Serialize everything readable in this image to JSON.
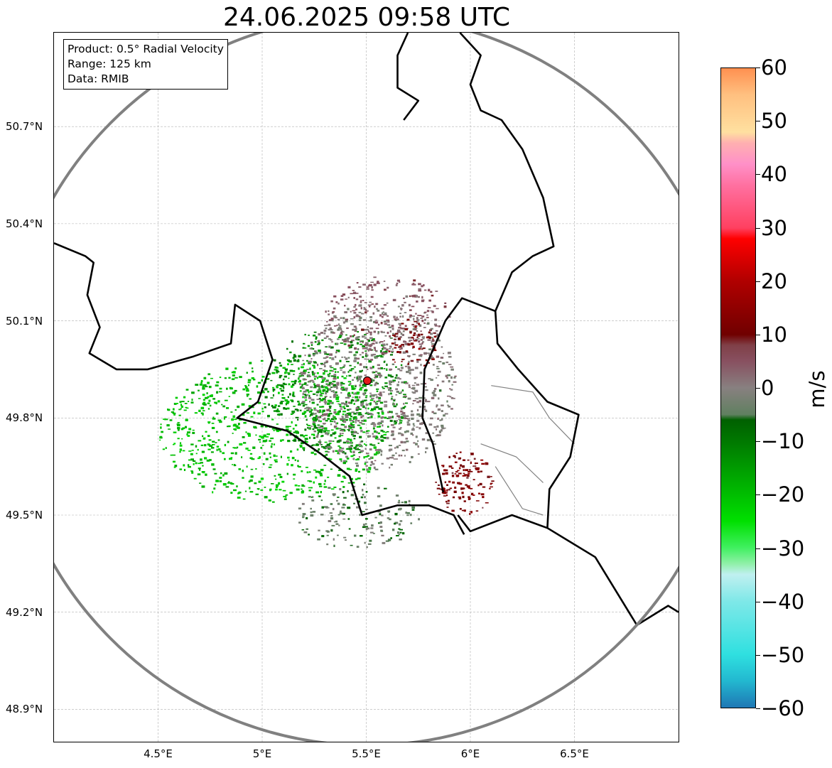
{
  "title": "24.06.2025 09:58 UTC",
  "info_box": {
    "product": "Product: 0.5° Radial Velocity",
    "range": "Range: 125 km",
    "source": "Data: RMIB"
  },
  "axes": {
    "lon_range": [
      4.0,
      7.0
    ],
    "lat_range": [
      48.8,
      50.99
    ],
    "x_ticks": [
      {
        "value": 4.5,
        "label": "4.5°E"
      },
      {
        "value": 5.0,
        "label": "5°E"
      },
      {
        "value": 5.5,
        "label": "5.5°E"
      },
      {
        "value": 6.0,
        "label": "6°E"
      },
      {
        "value": 6.5,
        "label": "6.5°E"
      }
    ],
    "y_ticks": [
      {
        "value": 50.7,
        "label": "50.7°N"
      },
      {
        "value": 50.4,
        "label": "50.4°N"
      },
      {
        "value": 50.1,
        "label": "50.1°N"
      },
      {
        "value": 49.8,
        "label": "49.8°N"
      },
      {
        "value": 49.5,
        "label": "49.5°N"
      },
      {
        "value": 49.2,
        "label": "49.2°N"
      },
      {
        "value": 48.9,
        "label": "48.9°N"
      }
    ],
    "grid": true
  },
  "radar": {
    "site": {
      "lon": 5.505,
      "lat": 49.915
    },
    "range_km": 125,
    "site_color": "#e31a1c",
    "ring_color": "#808080"
  },
  "colorbar": {
    "unit": "m/s",
    "min": -60,
    "max": 60,
    "ticks": [
      {
        "value": 60,
        "label": "60"
      },
      {
        "value": 50,
        "label": "50"
      },
      {
        "value": 40,
        "label": "40"
      },
      {
        "value": 30,
        "label": "30"
      },
      {
        "value": 20,
        "label": "20"
      },
      {
        "value": 10,
        "label": "10"
      },
      {
        "value": 0,
        "label": "0"
      },
      {
        "value": -10,
        "label": "−10"
      },
      {
        "value": -20,
        "label": "−20"
      },
      {
        "value": -30,
        "label": "−30"
      },
      {
        "value": -40,
        "label": "−40"
      },
      {
        "value": -50,
        "label": "−50"
      },
      {
        "value": -60,
        "label": "−60"
      }
    ],
    "stops": [
      {
        "value": -60,
        "color": "#1f77b4"
      },
      {
        "value": -55,
        "color": "#22b8d0"
      },
      {
        "value": -50,
        "color": "#2fe0e0"
      },
      {
        "value": -40,
        "color": "#7fe8e8"
      },
      {
        "value": -35,
        "color": "#c0f0f0"
      },
      {
        "value": -33,
        "color": "#90f0a8"
      },
      {
        "value": -30,
        "color": "#40f060"
      },
      {
        "value": -25,
        "color": "#00e000"
      },
      {
        "value": -18,
        "color": "#00b000"
      },
      {
        "value": -10,
        "color": "#007800"
      },
      {
        "value": -6,
        "color": "#006000"
      },
      {
        "value": -5,
        "color": "#608060"
      },
      {
        "value": 0,
        "color": "#888080"
      },
      {
        "value": 5,
        "color": "#885060"
      },
      {
        "value": 8,
        "color": "#804048"
      },
      {
        "value": 10,
        "color": "#700000"
      },
      {
        "value": 20,
        "color": "#b00000"
      },
      {
        "value": 28,
        "color": "#ff0000"
      },
      {
        "value": 30,
        "color": "#ff4060"
      },
      {
        "value": 38,
        "color": "#ff70a0"
      },
      {
        "value": 42,
        "color": "#ff90c8"
      },
      {
        "value": 46,
        "color": "#ffb0b0"
      },
      {
        "value": 48,
        "color": "#ffe0a0"
      },
      {
        "value": 55,
        "color": "#ffc080"
      },
      {
        "value": 60,
        "color": "#ff9050"
      }
    ]
  },
  "echo_regions": [
    {
      "name": "inbound-west",
      "lon": 5.05,
      "lat": 49.76,
      "r_lon": 0.55,
      "r_lat": 0.22,
      "velocity": -20,
      "density": 0.55
    },
    {
      "name": "inbound-core",
      "lon": 5.35,
      "lat": 49.88,
      "r_lon": 0.35,
      "r_lat": 0.2,
      "velocity": -12,
      "density": 0.6
    },
    {
      "name": "near-zero-center",
      "lon": 5.55,
      "lat": 49.9,
      "r_lon": 0.38,
      "r_lat": 0.26,
      "velocity": 0,
      "density": 0.7
    },
    {
      "name": "near-zero-north",
      "lon": 5.6,
      "lat": 50.12,
      "r_lon": 0.3,
      "r_lat": 0.12,
      "velocity": 4,
      "density": 0.55
    },
    {
      "name": "outbound-northeast",
      "lon": 5.72,
      "lat": 50.03,
      "r_lon": 0.12,
      "r_lat": 0.08,
      "velocity": 12,
      "density": 0.5
    },
    {
      "name": "outbound-southeast",
      "lon": 5.97,
      "lat": 49.6,
      "r_lon": 0.14,
      "r_lat": 0.1,
      "velocity": 12,
      "density": 0.8
    },
    {
      "name": "mixed-south",
      "lon": 5.45,
      "lat": 49.5,
      "r_lon": 0.3,
      "r_lat": 0.1,
      "velocity": -4,
      "density": 0.45
    }
  ],
  "border_lines": [
    {
      "name": "border-west",
      "points": [
        [
          4.0,
          50.34
        ],
        [
          4.15,
          50.3
        ],
        [
          4.19,
          50.28
        ],
        [
          4.16,
          50.18
        ],
        [
          4.22,
          50.08
        ],
        [
          4.17,
          50.0
        ],
        [
          4.3,
          49.95
        ],
        [
          4.45,
          49.95
        ],
        [
          4.67,
          49.99
        ],
        [
          4.85,
          50.03
        ],
        [
          4.87,
          50.15
        ],
        [
          4.99,
          50.1
        ],
        [
          5.05,
          49.98
        ],
        [
          4.98,
          49.85
        ],
        [
          4.88,
          49.8
        ],
        [
          5.0,
          49.78
        ],
        [
          5.12,
          49.76
        ],
        [
          5.28,
          49.69
        ],
        [
          5.42,
          49.62
        ],
        [
          5.48,
          49.5
        ],
        [
          5.65,
          49.53
        ],
        [
          5.8,
          49.53
        ],
        [
          5.92,
          49.5
        ],
        [
          5.97,
          49.44
        ]
      ]
    },
    {
      "name": "border-lux-east",
      "points": [
        [
          5.87,
          49.57
        ],
        [
          5.82,
          49.72
        ],
        [
          5.77,
          49.8
        ],
        [
          5.78,
          49.95
        ],
        [
          5.88,
          50.1
        ],
        [
          5.96,
          50.17
        ],
        [
          6.12,
          50.13
        ],
        [
          6.13,
          50.03
        ],
        [
          6.23,
          49.95
        ],
        [
          6.37,
          49.85
        ],
        [
          6.52,
          49.81
        ],
        [
          6.48,
          49.68
        ],
        [
          6.38,
          49.58
        ],
        [
          6.37,
          49.46
        ]
      ]
    },
    {
      "name": "border-germany",
      "points": [
        [
          5.94,
          49.5
        ],
        [
          6.0,
          49.45
        ],
        [
          6.2,
          49.5
        ],
        [
          6.37,
          49.46
        ],
        [
          6.6,
          49.37
        ],
        [
          6.8,
          49.16
        ],
        [
          6.95,
          49.22
        ],
        [
          7.0,
          49.2
        ]
      ]
    },
    {
      "name": "border-east-north",
      "points": [
        [
          6.12,
          50.13
        ],
        [
          6.2,
          50.25
        ],
        [
          6.3,
          50.3
        ],
        [
          6.4,
          50.33
        ],
        [
          6.35,
          50.48
        ],
        [
          6.25,
          50.63
        ],
        [
          6.15,
          50.72
        ],
        [
          6.05,
          50.75
        ],
        [
          6.0,
          50.83
        ],
        [
          6.05,
          50.92
        ],
        [
          5.95,
          50.99
        ]
      ]
    },
    {
      "name": "border-north-enclave",
      "points": [
        [
          5.7,
          50.99
        ],
        [
          5.65,
          50.92
        ],
        [
          5.65,
          50.82
        ],
        [
          5.75,
          50.78
        ],
        [
          5.68,
          50.72
        ]
      ]
    }
  ],
  "admin_lines": [
    {
      "name": "canton-a",
      "points": [
        [
          6.1,
          49.9
        ],
        [
          6.3,
          49.88
        ],
        [
          6.38,
          49.8
        ],
        [
          6.5,
          49.72
        ]
      ]
    },
    {
      "name": "canton-b",
      "points": [
        [
          6.05,
          49.72
        ],
        [
          6.22,
          49.68
        ],
        [
          6.35,
          49.6
        ]
      ]
    },
    {
      "name": "canton-c",
      "points": [
        [
          6.12,
          49.65
        ],
        [
          6.25,
          49.52
        ],
        [
          6.35,
          49.5
        ]
      ]
    }
  ]
}
